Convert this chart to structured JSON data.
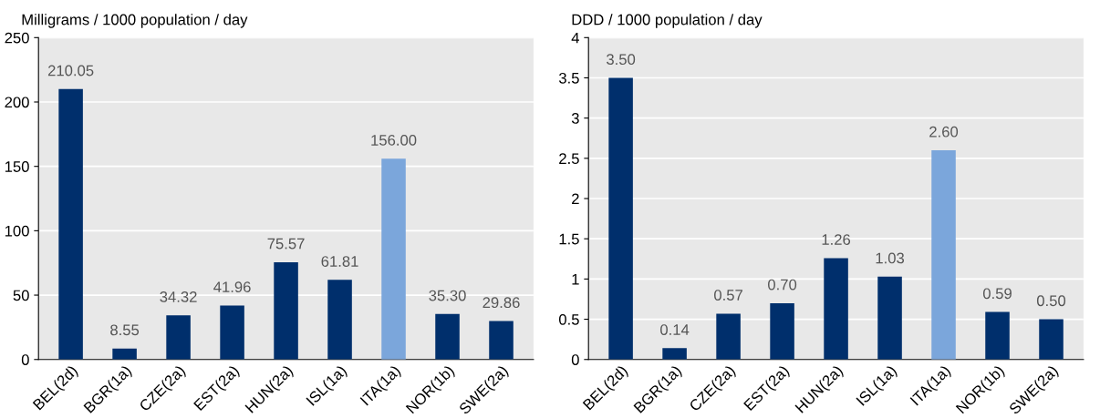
{
  "chart_data": [
    {
      "type": "bar",
      "ylabel": "Milligrams / 1000 population / day",
      "categories": [
        "BEL(2d)",
        "BGR(1a)",
        "CZE(2a)",
        "EST(2a)",
        "HUN(2a)",
        "ISL(1a)",
        "ITA(1a)",
        "NOR(1b)",
        "SWE(2a)"
      ],
      "values": [
        210.05,
        8.55,
        34.32,
        41.96,
        75.57,
        61.81,
        156.0,
        35.3,
        29.86
      ],
      "colors": [
        "#002f6c",
        "#002f6c",
        "#002f6c",
        "#002f6c",
        "#002f6c",
        "#002f6c",
        "#7ba6db",
        "#002f6c",
        "#002f6c"
      ],
      "value_labels": [
        "210.05",
        "8.55",
        "34.32",
        "41.96",
        "75.57",
        "61.81",
        "156.00",
        "35.30",
        "29.86"
      ],
      "ylim": [
        0,
        250
      ],
      "yticks": [
        0,
        50,
        100,
        150,
        200,
        250
      ],
      "grid": "y"
    },
    {
      "type": "bar",
      "ylabel": "DDD / 1000 population / day",
      "categories": [
        "BEL(2d)",
        "BGR(1a)",
        "CZE(2a)",
        "EST(2a)",
        "HUN(2a)",
        "ISL(1a)",
        "ITA(1a)",
        "NOR(1b)",
        "SWE(2a)"
      ],
      "values": [
        3.5,
        0.14,
        0.57,
        0.7,
        1.26,
        1.03,
        2.6,
        0.59,
        0.5
      ],
      "colors": [
        "#002f6c",
        "#002f6c",
        "#002f6c",
        "#002f6c",
        "#002f6c",
        "#002f6c",
        "#7ba6db",
        "#002f6c",
        "#002f6c"
      ],
      "value_labels": [
        "3.50",
        "0.14",
        "0.57",
        "0.70",
        "1.26",
        "1.03",
        "2.60",
        "0.59",
        "0.50"
      ],
      "ylim": [
        0,
        4
      ],
      "yticks": [
        0,
        0.5,
        1,
        1.5,
        2,
        2.5,
        3,
        3.5,
        4
      ],
      "grid": "y"
    }
  ]
}
